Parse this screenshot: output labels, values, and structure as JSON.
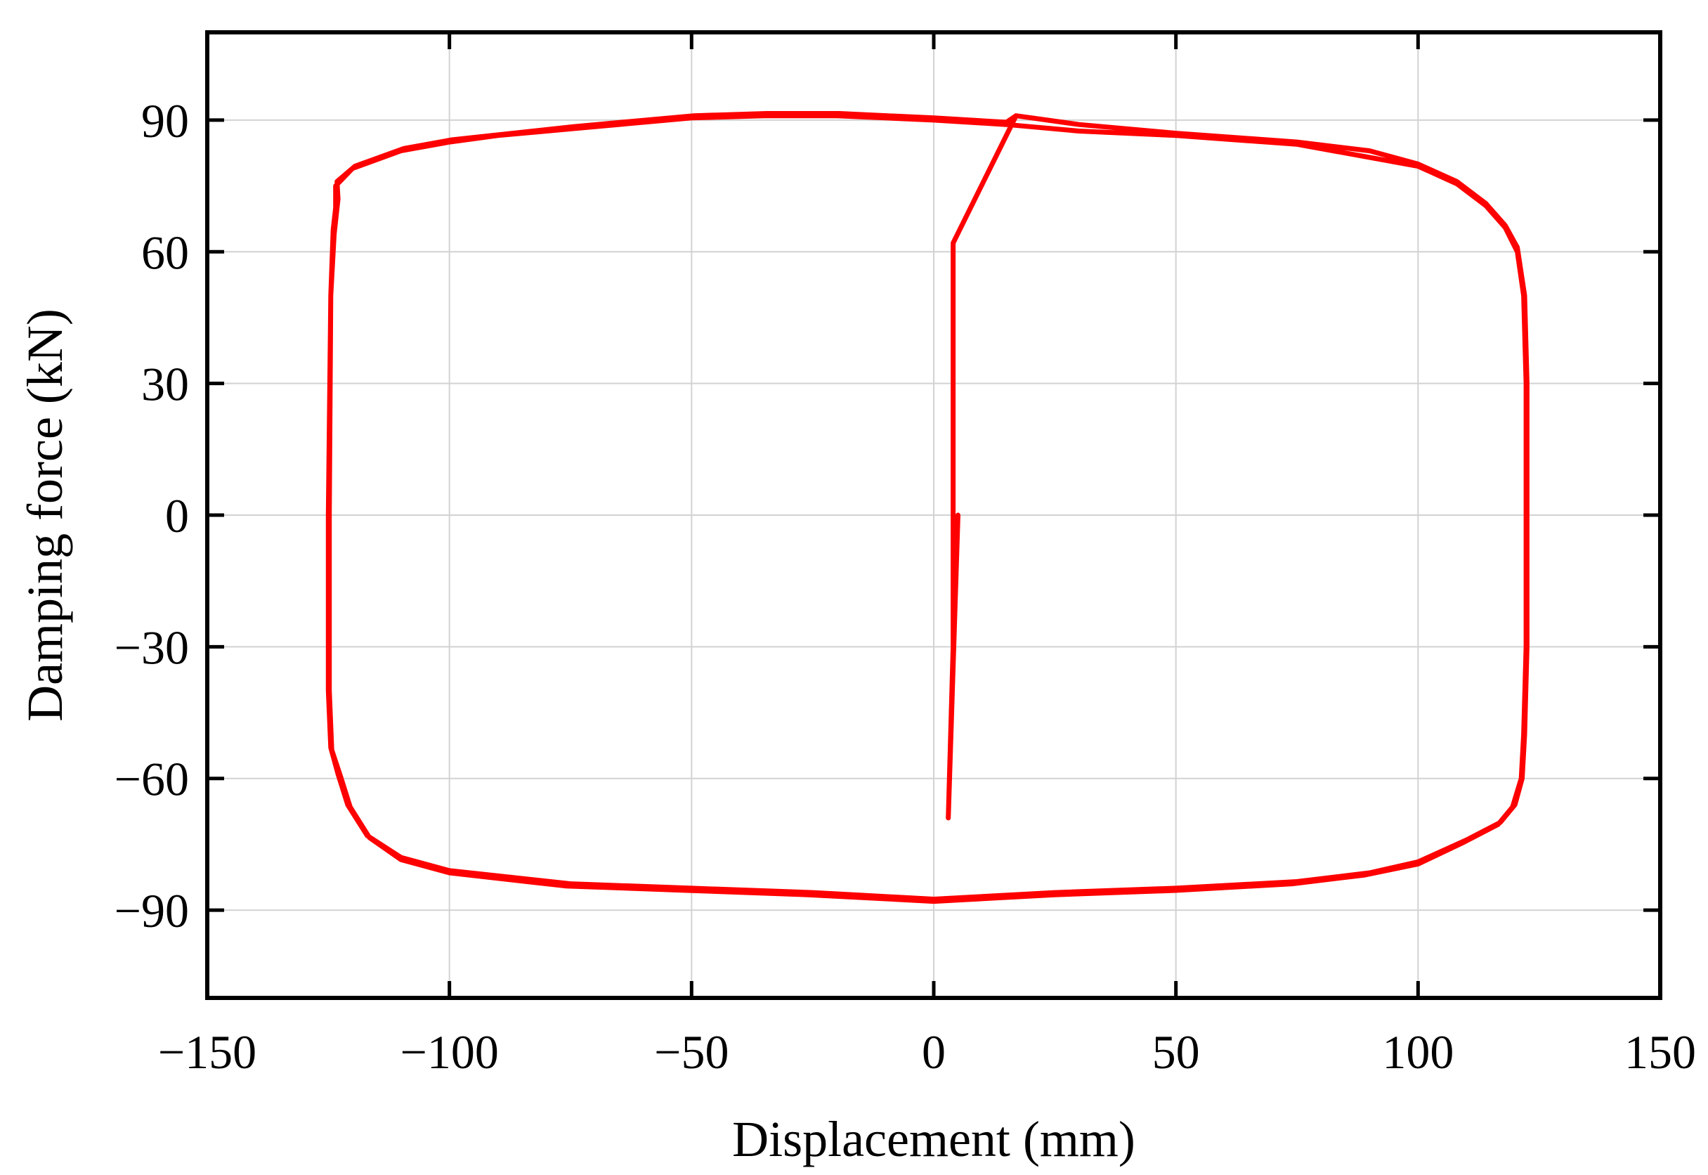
{
  "chart_data": {
    "type": "line",
    "xlabel": "Displacement (mm)",
    "ylabel": "Damping force (kN)",
    "xlim": [
      -150,
      150
    ],
    "ylim": [
      -110,
      110
    ],
    "xticks": [
      -150,
      -100,
      -50,
      0,
      50,
      100,
      150
    ],
    "yticks": [
      -90,
      -60,
      -30,
      0,
      30,
      60,
      90
    ],
    "xtick_labels": [
      "−150",
      "−100",
      "−50",
      "0",
      "50",
      "100",
      "150"
    ],
    "ytick_labels": [
      "−90",
      "−60",
      "−30",
      "0",
      "30",
      "60",
      "90"
    ],
    "grid": true,
    "series_color": "#ff0000",
    "series": [
      {
        "points": [
          [
            5,
            0
          ],
          [
            3,
            -69
          ],
          [
            4,
            -30
          ],
          [
            4,
            62
          ],
          [
            17,
            91
          ],
          [
            30,
            89
          ],
          [
            50,
            87
          ],
          [
            75,
            85
          ],
          [
            90,
            83
          ],
          [
            100,
            80
          ],
          [
            108,
            76
          ],
          [
            114,
            71
          ],
          [
            118,
            66
          ],
          [
            120.5,
            61
          ],
          [
            122,
            50
          ],
          [
            122.5,
            30
          ],
          [
            122.5,
            0
          ],
          [
            122.5,
            -30
          ],
          [
            122,
            -50
          ],
          [
            121.5,
            -60
          ],
          [
            120,
            -66
          ],
          [
            117,
            -70
          ],
          [
            110,
            -74
          ],
          [
            100,
            -79
          ],
          [
            90,
            -81.5
          ],
          [
            75,
            -83.5
          ],
          [
            50,
            -85
          ],
          [
            25,
            -86
          ],
          [
            0,
            -87.5
          ],
          [
            -25,
            -86
          ],
          [
            -50,
            -85
          ],
          [
            -75,
            -84
          ],
          [
            -100,
            -81
          ],
          [
            -110,
            -78
          ],
          [
            -117,
            -73
          ],
          [
            -121,
            -66
          ],
          [
            -123,
            -59
          ],
          [
            -124.5,
            -53
          ],
          [
            -125,
            -40
          ],
          [
            -125,
            -20
          ],
          [
            -125,
            0
          ],
          [
            -124.8,
            20
          ],
          [
            -124.5,
            50
          ],
          [
            -124,
            65
          ],
          [
            -123.5,
            70
          ],
          [
            -123.5,
            75
          ],
          [
            -120,
            79
          ],
          [
            -110,
            83
          ],
          [
            -100,
            85
          ],
          [
            -90,
            86.5
          ],
          [
            -75,
            88
          ],
          [
            -60,
            89.5
          ],
          [
            -50,
            90.5
          ],
          [
            -35,
            91
          ],
          [
            -20,
            91
          ],
          [
            -10,
            90.5
          ],
          [
            0,
            90
          ],
          [
            15,
            89
          ],
          [
            30,
            87.5
          ],
          [
            50,
            86.5
          ],
          [
            75,
            84.5
          ],
          [
            100,
            79.5
          ],
          [
            108,
            75.5
          ],
          [
            114,
            70.5
          ],
          [
            118,
            65.5
          ],
          [
            120.5,
            60
          ],
          [
            121.8,
            50
          ],
          [
            122.3,
            30
          ],
          [
            122.3,
            0
          ],
          [
            122.3,
            -30
          ],
          [
            121.8,
            -50
          ],
          [
            121.3,
            -60
          ],
          [
            119.5,
            -66.5
          ],
          [
            116.5,
            -70.5
          ],
          [
            109.5,
            -74.5
          ],
          [
            100,
            -79.5
          ],
          [
            89,
            -82
          ],
          [
            74,
            -84
          ],
          [
            50,
            -85.5
          ],
          [
            25,
            -86.5
          ],
          [
            0,
            -88
          ],
          [
            -26,
            -86.5
          ],
          [
            -51,
            -85.5
          ],
          [
            -76,
            -84.5
          ],
          [
            -100,
            -81.5
          ],
          [
            -110,
            -78.5
          ],
          [
            -116.5,
            -73.5
          ],
          [
            -120.5,
            -66.5
          ],
          [
            -122.5,
            -59.5
          ],
          [
            -124.3,
            -53.5
          ],
          [
            -124.8,
            -40
          ],
          [
            -124.8,
            0
          ],
          [
            -124.5,
            50
          ],
          [
            -123.8,
            64
          ],
          [
            -123,
            72
          ],
          [
            -123.2,
            76
          ],
          [
            -119.5,
            79.5
          ],
          [
            -109.5,
            83.5
          ],
          [
            -99.5,
            85.5
          ],
          [
            -74.5,
            88.5
          ],
          [
            -49.5,
            91
          ],
          [
            -34.5,
            91.5
          ],
          [
            -19.5,
            91.5
          ],
          [
            0,
            90.5
          ],
          [
            15,
            89.5
          ],
          [
            17,
            91
          ]
        ]
      }
    ]
  }
}
